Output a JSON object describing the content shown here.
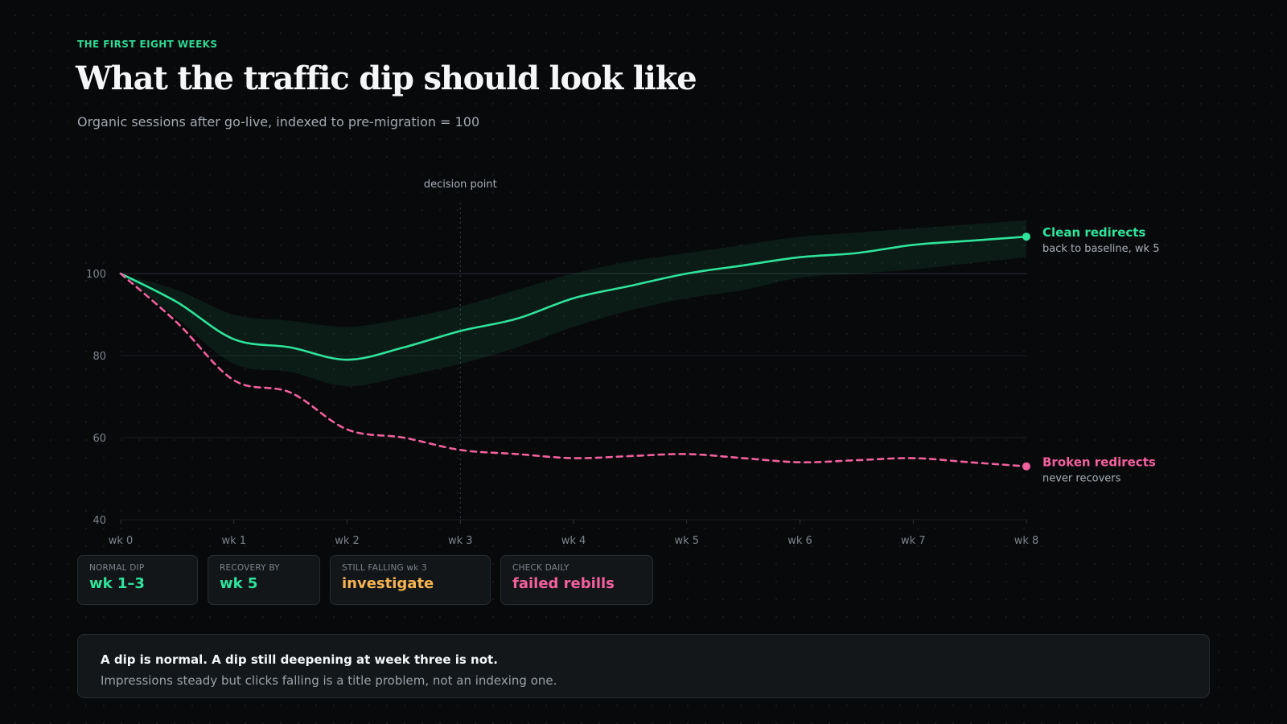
{
  "header": {
    "eyebrow": "THE FIRST EIGHT WEEKS",
    "title": "What the traffic dip should look like",
    "subtitle": "Organic sessions after go-live, indexed to pre-migration = 100"
  },
  "colors": {
    "clean": "#2fe39b",
    "broken": "#f2609e",
    "warning": "#f5b451"
  },
  "chart_data": {
    "type": "line",
    "x": [
      0,
      0.5,
      1,
      1.5,
      2,
      2.5,
      3,
      3.5,
      4,
      4.5,
      5,
      5.5,
      6,
      6.5,
      7,
      7.5,
      8
    ],
    "categories": [
      "wk 0",
      "wk 1",
      "wk 2",
      "wk 3",
      "wk 4",
      "wk 5",
      "wk 6",
      "wk 7",
      "wk 8"
    ],
    "yticks": [
      40,
      60,
      80,
      100
    ],
    "ylim": [
      40,
      120
    ],
    "xlim": [
      0,
      8
    ],
    "grid": true,
    "series": [
      {
        "name": "Clean redirects",
        "sublabel": "back to baseline, wk 5",
        "color": "#2fe39b",
        "dashed": false,
        "values": [
          100,
          93,
          84,
          82,
          79,
          82,
          86,
          89,
          94,
          97,
          100,
          102,
          104,
          105,
          107,
          108,
          109
        ],
        "band": [
          [
            100,
            100
          ],
          [
            89,
            96
          ],
          [
            78,
            90
          ],
          [
            76,
            88.5
          ],
          [
            72.5,
            87
          ],
          [
            75,
            89
          ],
          [
            78,
            92
          ],
          [
            82,
            96
          ],
          [
            87,
            100
          ],
          [
            91,
            103
          ],
          [
            94,
            105
          ],
          [
            96,
            107
          ],
          [
            99,
            109
          ],
          [
            100,
            110
          ],
          [
            101,
            111
          ],
          [
            102.5,
            112
          ],
          [
            104,
            113
          ]
        ]
      },
      {
        "name": "Broken redirects",
        "sublabel": "never recovers",
        "color": "#f2609e",
        "dashed": true,
        "values": [
          100,
          88,
          74,
          71,
          62,
          60,
          57,
          56,
          55,
          55.5,
          56,
          55,
          54,
          54.5,
          55,
          54,
          53
        ]
      }
    ],
    "annotations": [
      {
        "x": 3,
        "label": "decision point"
      }
    ]
  },
  "kpis": [
    {
      "label": "NORMAL DIP",
      "value": "wk 1–3",
      "color": "#2fe39b"
    },
    {
      "label": "RECOVERY BY",
      "value": "wk 5",
      "color": "#2fe39b"
    },
    {
      "label": "STILL FALLING wk 3",
      "value": "investigate",
      "color": "#f5b451"
    },
    {
      "label": "CHECK DAILY",
      "value": "failed rebills",
      "color": "#f2609e"
    }
  ],
  "callout": {
    "headline": "A dip is normal. A dip still deepening at week three is not.",
    "body": "Impressions steady but clicks falling is a title problem, not an indexing one."
  }
}
